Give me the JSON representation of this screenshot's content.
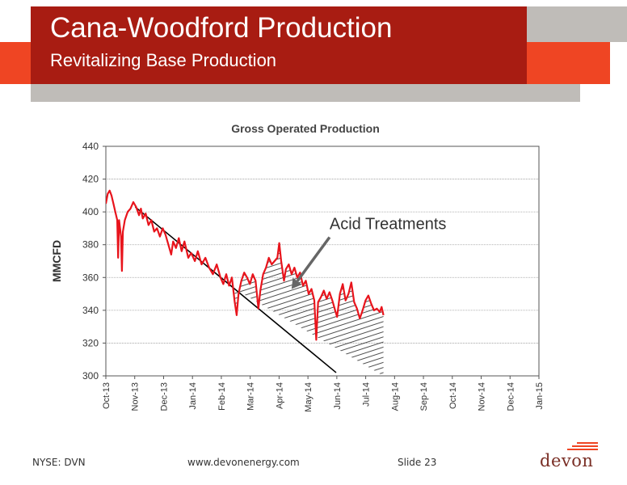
{
  "header": {
    "title": "Cana-Woodford Production",
    "subtitle": "Revitalizing Base Production"
  },
  "colors": {
    "accent_red": "#a81c12",
    "accent_orange": "#ef4523",
    "header_grey": "#bfbcb8",
    "series_red": "#e8141c"
  },
  "chart_data": {
    "type": "line",
    "title": "Gross Operated Production",
    "ylabel": "MMCFD",
    "xlabel": "",
    "ylim": [
      300,
      440
    ],
    "yticks": [
      300,
      320,
      340,
      360,
      380,
      400,
      420,
      440
    ],
    "xlim": [
      "2013-10-01",
      "2015-01-01"
    ],
    "xticks": [
      "Oct-13",
      "Nov-13",
      "Dec-13",
      "Jan-14",
      "Feb-14",
      "Mar-14",
      "Apr-14",
      "May-14",
      "Jun-14",
      "Jul-14",
      "Aug-14",
      "Sep-14",
      "Oct-14",
      "Nov-14",
      "Dec-14",
      "Jan-15"
    ],
    "grid": true,
    "legend": "none",
    "series": [
      {
        "values": [
          [
            "2013-10-01",
            405
          ],
          [
            "2013-10-03",
            411
          ],
          [
            "2013-10-05",
            413
          ],
          [
            "2013-10-07",
            410
          ],
          [
            "2013-10-09",
            405
          ],
          [
            "2013-10-11",
            400
          ],
          [
            "2013-10-13",
            395
          ],
          [
            "2013-10-14",
            372
          ],
          [
            "2013-10-15",
            395
          ],
          [
            "2013-10-17",
            385
          ],
          [
            "2013-10-18",
            364
          ],
          [
            "2013-10-19",
            388
          ],
          [
            "2013-10-21",
            395
          ],
          [
            "2013-10-24",
            400
          ],
          [
            "2013-10-27",
            402
          ],
          [
            "2013-10-30",
            406
          ],
          [
            "2013-11-02",
            403
          ],
          [
            "2013-11-05",
            398
          ],
          [
            "2013-11-07",
            402
          ],
          [
            "2013-11-09",
            396
          ],
          [
            "2013-11-12",
            399
          ],
          [
            "2013-11-15",
            392
          ],
          [
            "2013-11-18",
            395
          ],
          [
            "2013-11-21",
            388
          ],
          [
            "2013-11-24",
            390
          ],
          [
            "2013-11-27",
            385
          ],
          [
            "2013-11-30",
            390
          ],
          [
            "2013-12-03",
            386
          ],
          [
            "2013-12-06",
            380
          ],
          [
            "2013-12-09",
            374
          ],
          [
            "2013-12-11",
            382
          ],
          [
            "2013-12-14",
            378
          ],
          [
            "2013-12-17",
            384
          ],
          [
            "2013-12-20",
            376
          ],
          [
            "2013-12-23",
            382
          ],
          [
            "2013-12-27",
            372
          ],
          [
            "2013-12-30",
            375
          ],
          [
            "2014-01-03",
            370
          ],
          [
            "2014-01-06",
            376
          ],
          [
            "2014-01-10",
            368
          ],
          [
            "2014-01-14",
            372
          ],
          [
            "2014-01-18",
            366
          ],
          [
            "2014-01-22",
            362
          ],
          [
            "2014-01-26",
            368
          ],
          [
            "2014-01-30",
            360
          ],
          [
            "2014-02-02",
            356
          ],
          [
            "2014-02-05",
            362
          ],
          [
            "2014-02-08",
            355
          ],
          [
            "2014-02-11",
            360
          ],
          [
            "2014-02-14",
            345
          ],
          [
            "2014-02-16",
            337
          ],
          [
            "2014-02-18",
            350
          ],
          [
            "2014-02-21",
            358
          ],
          [
            "2014-02-24",
            363
          ],
          [
            "2014-02-27",
            360
          ],
          [
            "2014-03-02",
            356
          ],
          [
            "2014-03-05",
            362
          ],
          [
            "2014-03-08",
            358
          ],
          [
            "2014-03-11",
            341
          ],
          [
            "2014-03-13",
            352
          ],
          [
            "2014-03-16",
            362
          ],
          [
            "2014-03-19",
            366
          ],
          [
            "2014-03-22",
            372
          ],
          [
            "2014-03-25",
            368
          ],
          [
            "2014-03-28",
            370
          ],
          [
            "2014-03-31",
            372
          ],
          [
            "2014-04-02",
            381
          ],
          [
            "2014-04-04",
            370
          ],
          [
            "2014-04-07",
            358
          ],
          [
            "2014-04-09",
            365
          ],
          [
            "2014-04-12",
            368
          ],
          [
            "2014-04-15",
            362
          ],
          [
            "2014-04-18",
            366
          ],
          [
            "2014-04-21",
            360
          ],
          [
            "2014-04-24",
            363
          ],
          [
            "2014-04-27",
            355
          ],
          [
            "2014-04-30",
            358
          ],
          [
            "2014-05-03",
            350
          ],
          [
            "2014-05-06",
            353
          ],
          [
            "2014-05-09",
            346
          ],
          [
            "2014-05-11",
            322
          ],
          [
            "2014-05-13",
            345
          ],
          [
            "2014-05-16",
            348
          ],
          [
            "2014-05-19",
            352
          ],
          [
            "2014-05-22",
            347
          ],
          [
            "2014-05-25",
            351
          ],
          [
            "2014-05-28",
            346
          ],
          [
            "2014-05-31",
            340
          ],
          [
            "2014-06-02",
            336
          ],
          [
            "2014-06-05",
            350
          ],
          [
            "2014-06-08",
            356
          ],
          [
            "2014-06-11",
            346
          ],
          [
            "2014-06-14",
            350
          ],
          [
            "2014-06-17",
            357
          ],
          [
            "2014-06-20",
            345
          ],
          [
            "2014-06-23",
            341
          ],
          [
            "2014-06-26",
            335
          ],
          [
            "2014-06-29",
            340
          ],
          [
            "2014-07-02",
            346
          ],
          [
            "2014-07-05",
            349
          ],
          [
            "2014-07-08",
            344
          ],
          [
            "2014-07-11",
            340
          ],
          [
            "2014-07-14",
            341
          ],
          [
            "2014-07-17",
            339
          ],
          [
            "2014-07-19",
            342
          ],
          [
            "2014-07-21",
            337
          ]
        ]
      }
    ],
    "trend_line": {
      "start": [
        "2013-11-01",
        403
      ],
      "end": [
        "2014-06-01",
        302
      ]
    },
    "annotations": [
      {
        "text": "Acid Treatments",
        "arrow_to": [
          "2014-04-15",
          353
        ]
      }
    ]
  },
  "footer": {
    "ticker": "NYSE: DVN",
    "website": "www.devonenergy.com",
    "slide": "Slide 23",
    "brand": "devon"
  }
}
